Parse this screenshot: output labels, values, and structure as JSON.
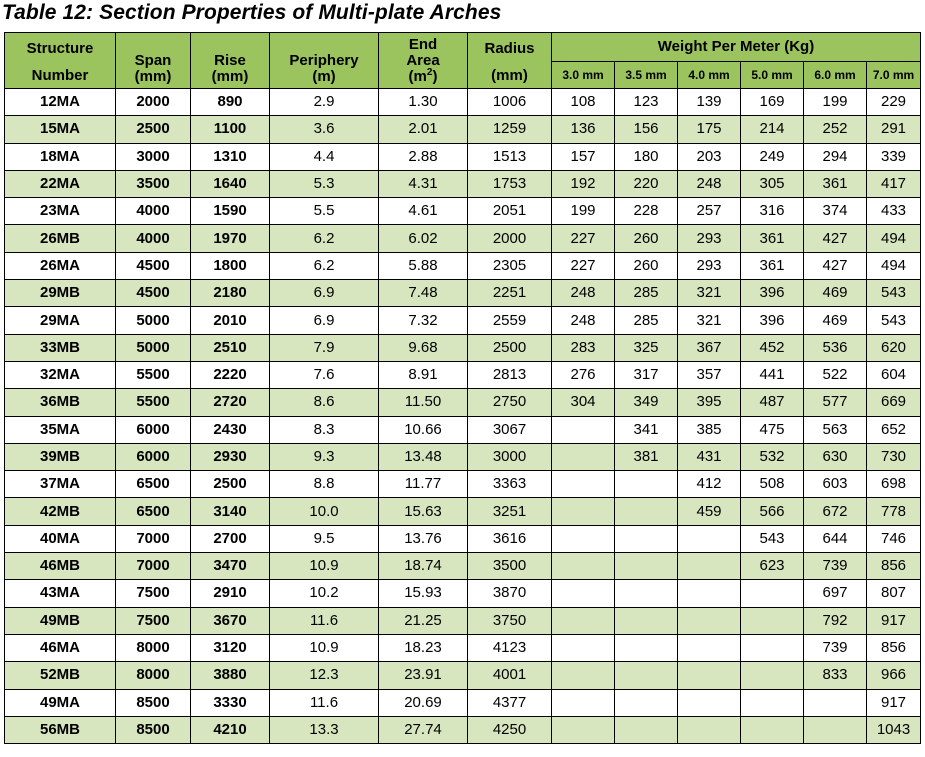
{
  "title": "Table 12: Section Properties of Multi-plate Arches",
  "headers": {
    "structure_top": "Structure",
    "structure_bottom": "Number",
    "span_line1": "Span",
    "span_line2": "(mm)",
    "rise_line1": "Rise",
    "rise_line2": "(mm)",
    "periphery_line1": "Periphery",
    "periphery_line2": "(m)",
    "end_area_line1": "End",
    "end_area_line2": "Area",
    "end_area_unit_open": "(m",
    "end_area_unit_sup": "2",
    "end_area_unit_close": ")",
    "radius_top": "Radius",
    "radius_bottom": "(mm)",
    "weight_group": "Weight Per Meter (Kg)",
    "thickness": [
      "3.0 mm",
      "3.5 mm",
      "4.0 mm",
      "5.0 mm",
      "6.0 mm",
      "7.0 mm"
    ]
  },
  "rows": [
    {
      "structure": "12MA",
      "span": "2000",
      "rise": "890",
      "periphery": "2.9",
      "end_area": "1.30",
      "radius": "1006",
      "weights": [
        "108",
        "123",
        "139",
        "169",
        "199",
        "229"
      ]
    },
    {
      "structure": "15MA",
      "span": "2500",
      "rise": "1100",
      "periphery": "3.6",
      "end_area": "2.01",
      "radius": "1259",
      "weights": [
        "136",
        "156",
        "175",
        "214",
        "252",
        "291"
      ]
    },
    {
      "structure": "18MA",
      "span": "3000",
      "rise": "1310",
      "periphery": "4.4",
      "end_area": "2.88",
      "radius": "1513",
      "weights": [
        "157",
        "180",
        "203",
        "249",
        "294",
        "339"
      ]
    },
    {
      "structure": "22MA",
      "span": "3500",
      "rise": "1640",
      "periphery": "5.3",
      "end_area": "4.31",
      "radius": "1753",
      "weights": [
        "192",
        "220",
        "248",
        "305",
        "361",
        "417"
      ]
    },
    {
      "structure": "23MA",
      "span": "4000",
      "rise": "1590",
      "periphery": "5.5",
      "end_area": "4.61",
      "radius": "2051",
      "weights": [
        "199",
        "228",
        "257",
        "316",
        "374",
        "433"
      ]
    },
    {
      "structure": "26MB",
      "span": "4000",
      "rise": "1970",
      "periphery": "6.2",
      "end_area": "6.02",
      "radius": "2000",
      "weights": [
        "227",
        "260",
        "293",
        "361",
        "427",
        "494"
      ]
    },
    {
      "structure": "26MA",
      "span": "4500",
      "rise": "1800",
      "periphery": "6.2",
      "end_area": "5.88",
      "radius": "2305",
      "weights": [
        "227",
        "260",
        "293",
        "361",
        "427",
        "494"
      ]
    },
    {
      "structure": "29MB",
      "span": "4500",
      "rise": "2180",
      "periphery": "6.9",
      "end_area": "7.48",
      "radius": "2251",
      "weights": [
        "248",
        "285",
        "321",
        "396",
        "469",
        "543"
      ]
    },
    {
      "structure": "29MA",
      "span": "5000",
      "rise": "2010",
      "periphery": "6.9",
      "end_area": "7.32",
      "radius": "2559",
      "weights": [
        "248",
        "285",
        "321",
        "396",
        "469",
        "543"
      ]
    },
    {
      "structure": "33MB",
      "span": "5000",
      "rise": "2510",
      "periphery": "7.9",
      "end_area": "9.68",
      "radius": "2500",
      "weights": [
        "283",
        "325",
        "367",
        "452",
        "536",
        "620"
      ]
    },
    {
      "structure": "32MA",
      "span": "5500",
      "rise": "2220",
      "periphery": "7.6",
      "end_area": "8.91",
      "radius": "2813",
      "weights": [
        "276",
        "317",
        "357",
        "441",
        "522",
        "604"
      ]
    },
    {
      "structure": "36MB",
      "span": "5500",
      "rise": "2720",
      "periphery": "8.6",
      "end_area": "11.50",
      "radius": "2750",
      "weights": [
        "304",
        "349",
        "395",
        "487",
        "577",
        "669"
      ]
    },
    {
      "structure": "35MA",
      "span": "6000",
      "rise": "2430",
      "periphery": "8.3",
      "end_area": "10.66",
      "radius": "3067",
      "weights": [
        "",
        "341",
        "385",
        "475",
        "563",
        "652"
      ]
    },
    {
      "structure": "39MB",
      "span": "6000",
      "rise": "2930",
      "periphery": "9.3",
      "end_area": "13.48",
      "radius": "3000",
      "weights": [
        "",
        "381",
        "431",
        "532",
        "630",
        "730"
      ]
    },
    {
      "structure": "37MA",
      "span": "6500",
      "rise": "2500",
      "periphery": "8.8",
      "end_area": "11.77",
      "radius": "3363",
      "weights": [
        "",
        "",
        "412",
        "508",
        "603",
        "698"
      ]
    },
    {
      "structure": "42MB",
      "span": "6500",
      "rise": "3140",
      "periphery": "10.0",
      "end_area": "15.63",
      "radius": "3251",
      "weights": [
        "",
        "",
        "459",
        "566",
        "672",
        "778"
      ]
    },
    {
      "structure": "40MA",
      "span": "7000",
      "rise": "2700",
      "periphery": "9.5",
      "end_area": "13.76",
      "radius": "3616",
      "weights": [
        "",
        "",
        "",
        "543",
        "644",
        "746"
      ]
    },
    {
      "structure": "46MB",
      "span": "7000",
      "rise": "3470",
      "periphery": "10.9",
      "end_area": "18.74",
      "radius": "3500",
      "weights": [
        "",
        "",
        "",
        "623",
        "739",
        "856"
      ]
    },
    {
      "structure": "43MA",
      "span": "7500",
      "rise": "2910",
      "periphery": "10.2",
      "end_area": "15.93",
      "radius": "3870",
      "weights": [
        "",
        "",
        "",
        "",
        "697",
        "807"
      ]
    },
    {
      "structure": "49MB",
      "span": "7500",
      "rise": "3670",
      "periphery": "11.6",
      "end_area": "21.25",
      "radius": "3750",
      "weights": [
        "",
        "",
        "",
        "",
        "792",
        "917"
      ]
    },
    {
      "structure": "46MA",
      "span": "8000",
      "rise": "3120",
      "periphery": "10.9",
      "end_area": "18.23",
      "radius": "4123",
      "weights": [
        "",
        "",
        "",
        "",
        "739",
        "856"
      ]
    },
    {
      "structure": "52MB",
      "span": "8000",
      "rise": "3880",
      "periphery": "12.3",
      "end_area": "23.91",
      "radius": "4001",
      "weights": [
        "",
        "",
        "",
        "",
        "833",
        "966"
      ]
    },
    {
      "structure": "49MA",
      "span": "8500",
      "rise": "3330",
      "periphery": "11.6",
      "end_area": "20.69",
      "radius": "4377",
      "weights": [
        "",
        "",
        "",
        "",
        "",
        "917"
      ]
    },
    {
      "structure": "56MB",
      "span": "8500",
      "rise": "4210",
      "periphery": "13.3",
      "end_area": "27.74",
      "radius": "4250",
      "weights": [
        "",
        "",
        "",
        "",
        "",
        "1043"
      ]
    }
  ],
  "colors": {
    "header_green": "#9bc45e",
    "alt_row_green": "#d8e6bf",
    "row_white": "#ffffff",
    "border": "#000000"
  }
}
